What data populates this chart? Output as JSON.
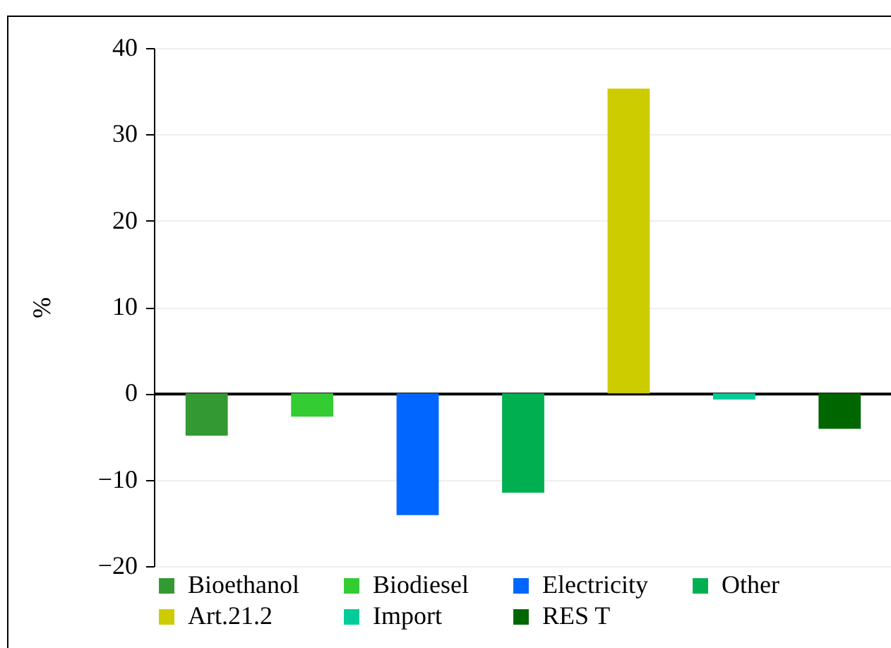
{
  "chart_data": {
    "type": "bar",
    "ylabel": "%",
    "categories": [
      null,
      null,
      null,
      null,
      null,
      null,
      null
    ],
    "series": [
      {
        "name": "Bioethanol",
        "color": "#339933",
        "values": [
          -4.9,
          null,
          null,
          null,
          null,
          null,
          null
        ]
      },
      {
        "name": "Biodiesel",
        "color": "#33cc33",
        "values": [
          null,
          -2.7,
          null,
          null,
          null,
          null,
          null
        ]
      },
      {
        "name": "Electricity",
        "color": "#0066ff",
        "values": [
          null,
          null,
          -14.1,
          null,
          null,
          null,
          null
        ]
      },
      {
        "name": "Other",
        "color": "#00b050",
        "values": [
          null,
          null,
          null,
          -11.5,
          null,
          null,
          null
        ]
      },
      {
        "name": "Art.21.2",
        "color": "#cccc00",
        "values": [
          null,
          null,
          null,
          null,
          35.3,
          null,
          null
        ]
      },
      {
        "name": "Import",
        "color": "#00cc99",
        "values": [
          null,
          null,
          null,
          null,
          null,
          -0.7,
          null
        ]
      },
      {
        "name": "RES T",
        "color": "#006600",
        "values": [
          null,
          null,
          null,
          null,
          null,
          null,
          -4.1
        ]
      }
    ],
    "ylim": [
      -20,
      40
    ],
    "yticks": [
      -20,
      -10,
      0,
      10,
      20,
      30,
      40
    ],
    "grid": "y",
    "legend": "bottom"
  }
}
